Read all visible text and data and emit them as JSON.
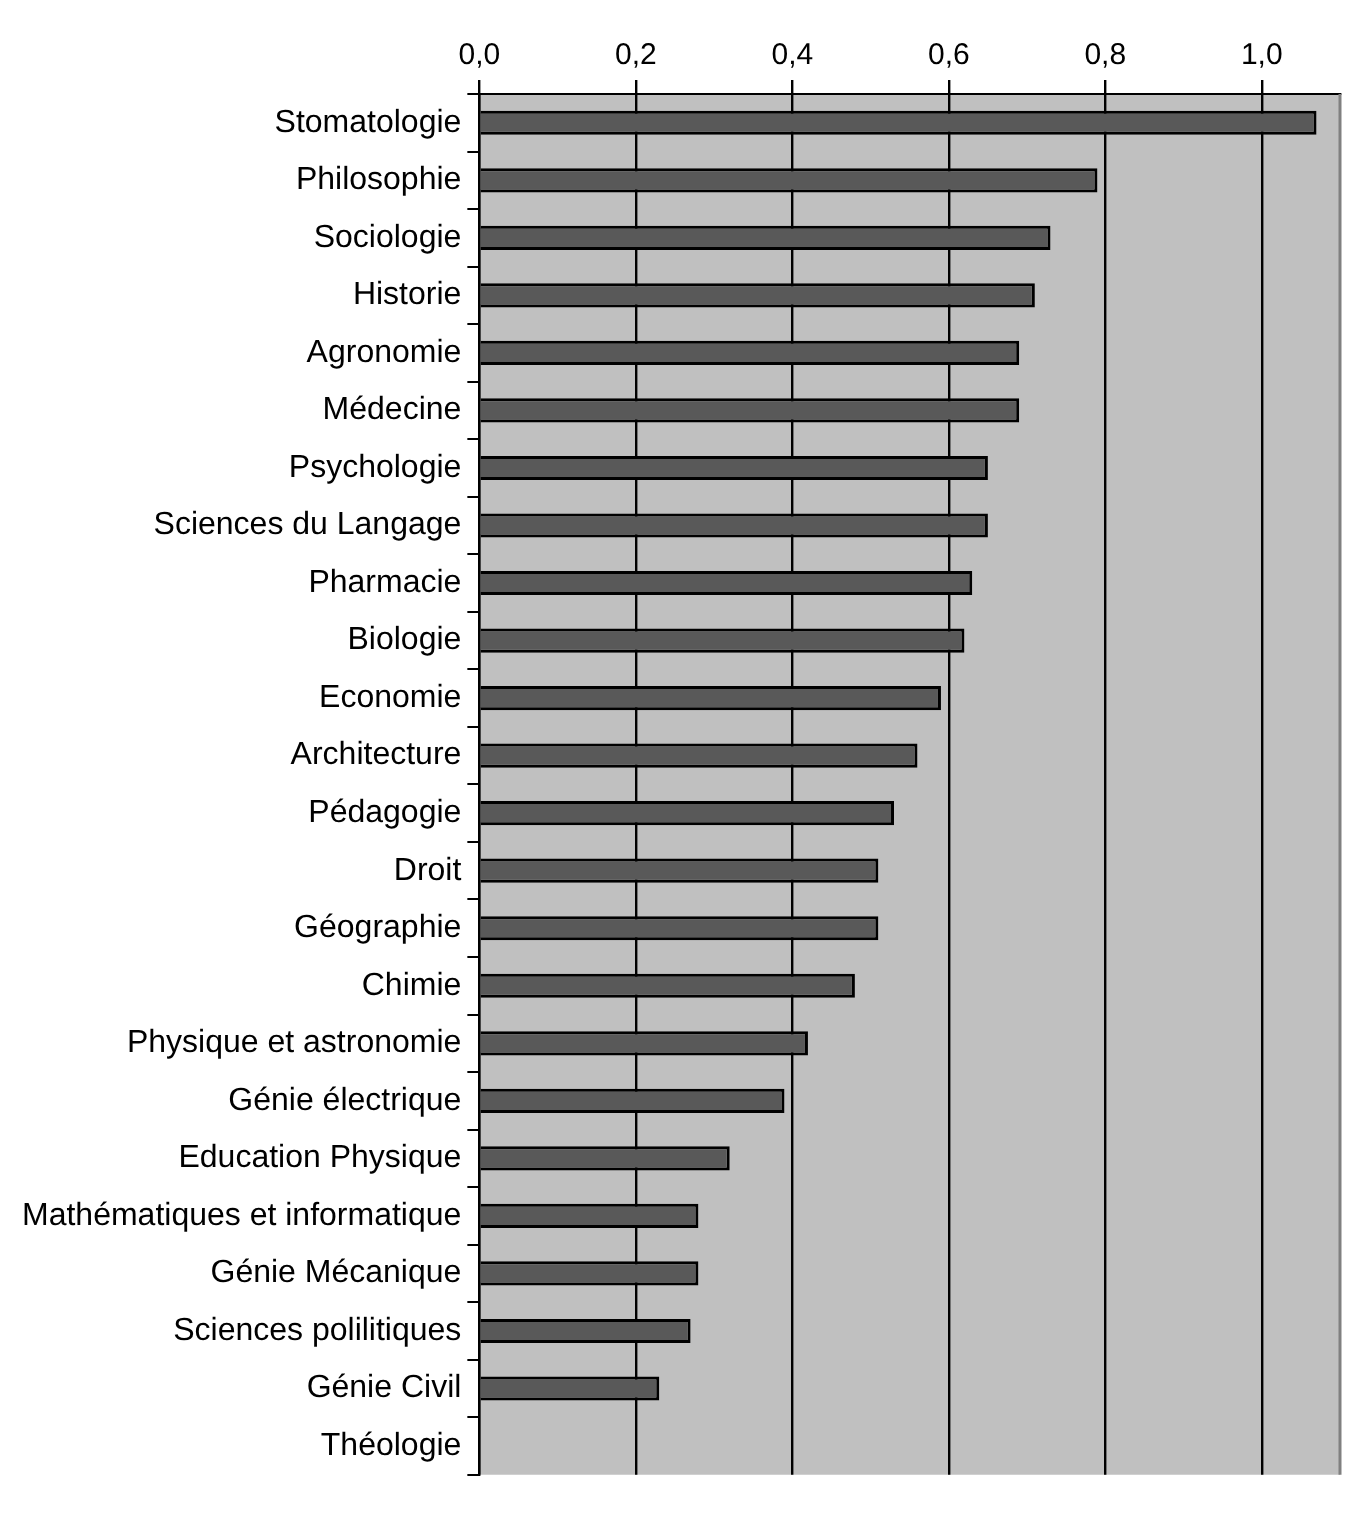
{
  "chart_data": {
    "type": "bar",
    "orientation": "horizontal",
    "categories": [
      "Stomatologie",
      "Philosophie",
      "Sociologie",
      "Historie",
      "Agronomie",
      "Médecine",
      "Psychologie",
      "Sciences du Langage",
      "Pharmacie",
      "Biologie",
      "Economie",
      "Architecture",
      "Pédagogie",
      "Droit",
      "Géographie",
      "Chimie",
      "Physique et astronomie",
      "Génie électrique",
      "Education Physique",
      "Mathématiques et informatique",
      "Génie Mécanique",
      "Sciences polilitiques",
      "Génie Civil",
      "Théologie"
    ],
    "values": [
      1.07,
      0.79,
      0.73,
      0.71,
      0.69,
      0.69,
      0.65,
      0.65,
      0.63,
      0.62,
      0.59,
      0.56,
      0.53,
      0.51,
      0.51,
      0.48,
      0.42,
      0.39,
      0.32,
      0.28,
      0.28,
      0.27,
      0.23,
      null
    ],
    "color": "#595959",
    "xlim": [
      0,
      1.1
    ],
    "xticks": [
      {
        "value": 0,
        "label": "0,0"
      },
      {
        "value": 0.2,
        "label": "0,2"
      },
      {
        "value": 0.4,
        "label": "0,4"
      },
      {
        "value": 0.6,
        "label": "0,6"
      },
      {
        "value": 0.8,
        "label": "0,8"
      },
      {
        "value": 1,
        "label": "1,0"
      }
    ],
    "grid": "x",
    "legend": false
  }
}
